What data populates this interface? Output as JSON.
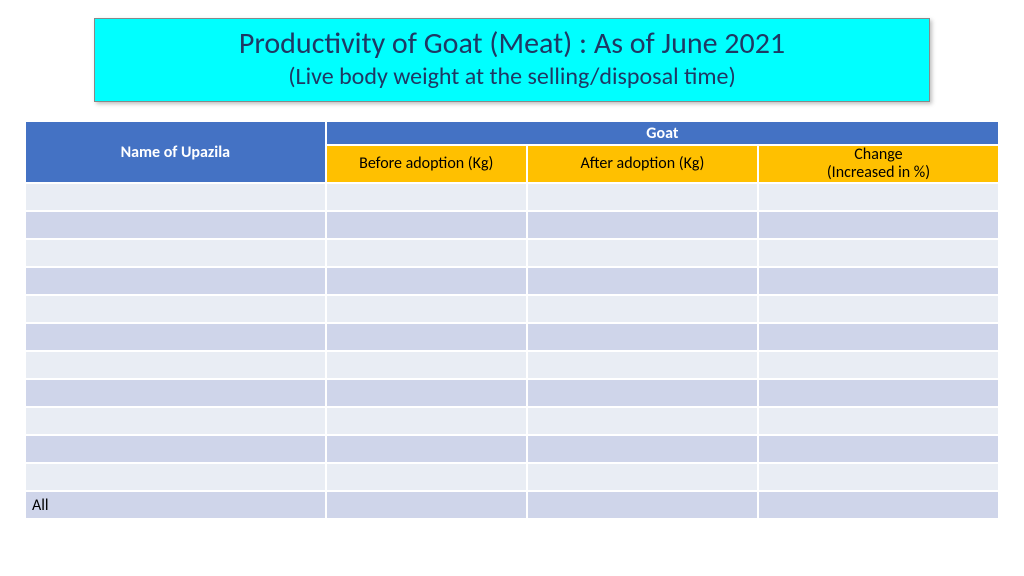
{
  "title": {
    "main": "Productivity of Goat (Meat) : As of June 2021",
    "sub": "(Live body weight at the selling/disposal time)"
  },
  "colors": {
    "title_bg": "#00ffff",
    "title_text": "#1f3864",
    "header_blue": "#4472c4",
    "header_orange": "#ffc000",
    "row_light": "#e9edf4",
    "row_dark": "#cfd5ea"
  },
  "table": {
    "headers": {
      "name": "Name of Upazila",
      "group": "Goat",
      "before": "Before adoption (Kg)",
      "after": "After adoption (Kg)",
      "change_l1": "Change",
      "change_l2": "(Increased in %)"
    },
    "rows": [
      {
        "name": "",
        "before": "",
        "after": "",
        "change": ""
      },
      {
        "name": "",
        "before": "",
        "after": "",
        "change": ""
      },
      {
        "name": "",
        "before": "",
        "after": "",
        "change": ""
      },
      {
        "name": "",
        "before": "",
        "after": "",
        "change": ""
      },
      {
        "name": "",
        "before": "",
        "after": "",
        "change": ""
      },
      {
        "name": "",
        "before": "",
        "after": "",
        "change": ""
      },
      {
        "name": "",
        "before": "",
        "after": "",
        "change": ""
      },
      {
        "name": "",
        "before": "",
        "after": "",
        "change": ""
      },
      {
        "name": "",
        "before": "",
        "after": "",
        "change": ""
      },
      {
        "name": "",
        "before": "",
        "after": "",
        "change": ""
      },
      {
        "name": "",
        "before": "",
        "after": "",
        "change": ""
      },
      {
        "name": "All",
        "before": "",
        "after": "",
        "change": ""
      }
    ]
  }
}
